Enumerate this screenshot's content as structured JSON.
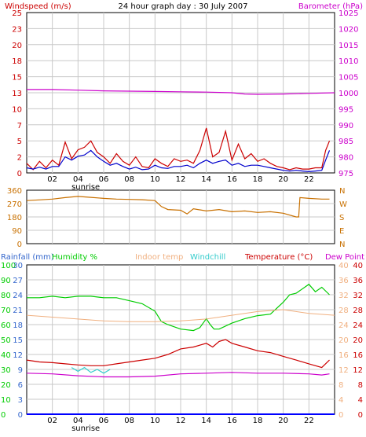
{
  "colors": {
    "frame": "#000000",
    "grid": "#c8c8c8",
    "windspeed": "#cc0000",
    "wind_avg": "#0000cc",
    "barometer": "#cc00cc",
    "direction": "#c87000",
    "rainfall": "#0000ff",
    "humidity": "#00cc00",
    "indoor_temp": "#f0b080",
    "windchill": "#33cccc",
    "temperature": "#cc0000",
    "dew_point": "#cc00cc",
    "temp_axis": "#cc0000",
    "rain_axis": "#3366cc"
  },
  "chart_data": [
    {
      "type": "line",
      "title": "24 hour graph day : 30 July 2007",
      "left_label": "Windspeed (m/s)",
      "right_label": "Barometer (hPa)",
      "xlim": [
        0,
        24
      ],
      "x_ticks": [
        "02",
        "04",
        "06",
        "08",
        "10",
        "12",
        "14",
        "16",
        "18",
        "20",
        "22"
      ],
      "x_tick_hours": [
        2,
        4,
        6,
        8,
        10,
        12,
        14,
        16,
        18,
        20,
        22
      ],
      "sunrise_label": "sunrise",
      "sunrise_hour": 4.6,
      "left_ylim": [
        0,
        25
      ],
      "left_ticks": [
        "0",
        "2",
        "5",
        "7",
        "10",
        "13",
        "15",
        "18",
        "20",
        "23",
        "25"
      ],
      "right_ylim": [
        975,
        1025
      ],
      "right_ticks": [
        "975",
        "980",
        "985",
        "990",
        "995",
        "1000",
        "1005",
        "1010",
        "1015",
        "1020",
        "1025"
      ],
      "series": [
        {
          "key": "gust",
          "axis": "left",
          "x": [
            0,
            0.5,
            1,
            1.5,
            2,
            2.5,
            3,
            3.5,
            4,
            4.5,
            5,
            5.5,
            6,
            6.5,
            7,
            7.5,
            8,
            8.5,
            9,
            9.5,
            10,
            10.5,
            11,
            11.5,
            12,
            12.5,
            13,
            13.5,
            14,
            14.5,
            15,
            15.5,
            16,
            16.5,
            17,
            17.5,
            18,
            18.5,
            19,
            19.5,
            20,
            20.5,
            21,
            21.5,
            22,
            22.5,
            23,
            23.3,
            23.6
          ],
          "y": [
            1.5,
            0.5,
            1.8,
            0.8,
            2.0,
            1.2,
            4.8,
            2.2,
            3.6,
            4.0,
            5.0,
            3.2,
            2.5,
            1.5,
            3.0,
            1.8,
            1.2,
            2.5,
            1.0,
            0.8,
            2.2,
            1.5,
            1.0,
            2.2,
            1.8,
            2.0,
            1.5,
            3.5,
            7.0,
            2.5,
            3.2,
            6.5,
            2.0,
            4.5,
            2.2,
            3.0,
            1.8,
            2.2,
            1.5,
            1.0,
            0.8,
            0.5,
            0.8,
            0.6,
            0.6,
            0.8,
            0.8,
            3.5,
            5.0
          ]
        },
        {
          "key": "average",
          "axis": "left",
          "x": [
            0,
            0.5,
            1,
            1.5,
            2,
            2.5,
            3,
            3.5,
            4,
            4.5,
            5,
            5.5,
            6,
            6.5,
            7,
            7.5,
            8,
            8.5,
            9,
            9.5,
            10,
            10.5,
            11,
            11.5,
            12,
            12.5,
            13,
            13.5,
            14,
            14.5,
            15,
            15.5,
            16,
            16.5,
            17,
            17.5,
            18,
            18.5,
            19,
            19.5,
            20,
            20.5,
            21,
            21.5,
            22,
            22.5,
            23,
            23.3,
            23.6
          ],
          "y": [
            0.8,
            0.6,
            0.9,
            0.6,
            1.0,
            1.0,
            2.5,
            2.0,
            2.6,
            2.8,
            3.5,
            2.5,
            1.8,
            1.2,
            1.5,
            1.0,
            0.6,
            0.9,
            0.5,
            0.6,
            1.2,
            0.8,
            0.7,
            1.0,
            1.0,
            1.2,
            0.8,
            1.5,
            2.0,
            1.5,
            1.8,
            2.0,
            1.2,
            1.5,
            1.0,
            1.2,
            1.2,
            1.0,
            0.8,
            0.6,
            0.4,
            0.3,
            0.4,
            0.3,
            0.2,
            0.3,
            0.4,
            2.0,
            3.5
          ]
        },
        {
          "key": "barometer",
          "axis": "right",
          "x": [
            0,
            2,
            4,
            6,
            8,
            10,
            12,
            14,
            16,
            17,
            18,
            20,
            22,
            24
          ],
          "y": [
            1001.0,
            1001.0,
            1000.8,
            1000.6,
            1000.5,
            1000.4,
            1000.3,
            1000.2,
            1000.0,
            999.6,
            999.5,
            999.6,
            999.8,
            1000.0
          ]
        }
      ]
    },
    {
      "type": "line",
      "xlim": [
        0,
        24
      ],
      "x_tick_hours": [
        2,
        4,
        6,
        8,
        10,
        12,
        14,
        16,
        18,
        20,
        22
      ],
      "left_ylim": [
        0,
        360
      ],
      "left_ticks": [
        "0",
        "90",
        "180",
        "270",
        "360"
      ],
      "right_ticks": [
        "N",
        "E",
        "S",
        "W",
        "N"
      ],
      "series": [
        {
          "key": "direction",
          "axis": "left",
          "x": [
            0,
            1,
            2,
            3,
            4,
            5,
            6,
            7,
            8,
            9,
            10,
            10.5,
            11,
            12,
            12.5,
            13,
            14,
            15,
            16,
            17,
            18,
            19,
            20,
            21,
            21.2,
            21.3,
            22,
            23,
            23.6
          ],
          "y": [
            290,
            295,
            300,
            310,
            318,
            312,
            305,
            300,
            298,
            296,
            290,
            250,
            230,
            225,
            200,
            235,
            220,
            230,
            215,
            220,
            210,
            215,
            205,
            180,
            180,
            310,
            305,
            300,
            300
          ]
        }
      ]
    },
    {
      "type": "line",
      "left_labels": [
        "Rainfall (mm)",
        "Humidity %"
      ],
      "center_labels": [
        "Indoor temp",
        "Windchill"
      ],
      "right_labels": [
        "Temperature (°C)",
        "Dew Point"
      ],
      "xlim": [
        0,
        24
      ],
      "x_ticks": [
        "02",
        "04",
        "06",
        "08",
        "10",
        "12",
        "14",
        "16",
        "18",
        "20",
        "22"
      ],
      "x_tick_hours": [
        2,
        4,
        6,
        8,
        10,
        12,
        14,
        16,
        18,
        20,
        22
      ],
      "sunrise_label": "sunrise",
      "sunrise_hour": 4.6,
      "rain_ylim": [
        0,
        30
      ],
      "rain_ticks": [
        "0",
        "3",
        "6",
        "9",
        "12",
        "15",
        "18",
        "21",
        "24",
        "27",
        "30"
      ],
      "humidity_ylim": [
        0,
        100
      ],
      "humidity_ticks": [
        "0",
        "10",
        "20",
        "30",
        "40",
        "50",
        "60",
        "70",
        "80",
        "90",
        "100"
      ],
      "temp_ylim": [
        0,
        40
      ],
      "temp_ticks_left": [
        "0",
        "4",
        "8",
        "12",
        "16",
        "20",
        "24",
        "28",
        "32",
        "36",
        "40"
      ],
      "temp_ticks_right": [
        "0",
        "4",
        "8",
        "12",
        "16",
        "20",
        "24",
        "28",
        "32",
        "36",
        "40"
      ],
      "series": [
        {
          "key": "rainfall",
          "axis": "rain",
          "x": [
            0,
            24
          ],
          "y": [
            0,
            0
          ]
        },
        {
          "key": "humidity",
          "axis": "humidity",
          "x": [
            0,
            1,
            2,
            3,
            4,
            5,
            6,
            7,
            8,
            9,
            10,
            10.5,
            11,
            12,
            13,
            13.5,
            14,
            14.3,
            14.6,
            15,
            16,
            17,
            18,
            19,
            20,
            20.5,
            21,
            22,
            22.5,
            23,
            23.6
          ],
          "y": [
            78,
            78,
            79,
            78,
            79,
            79,
            78,
            78,
            76,
            74,
            69,
            62,
            60,
            57,
            56,
            58,
            64,
            60,
            57,
            57,
            61,
            64,
            66,
            67,
            75,
            80,
            81,
            87,
            82,
            85,
            80
          ]
        },
        {
          "key": "indoor_temp",
          "axis": "temp",
          "x": [
            0,
            2,
            4,
            6,
            8,
            10,
            12,
            14,
            16,
            18,
            20,
            22,
            24
          ],
          "y": [
            26.5,
            26.0,
            25.5,
            25.0,
            24.8,
            24.8,
            25.0,
            25.5,
            26.5,
            27.5,
            28.0,
            27.0,
            26.5
          ]
        },
        {
          "key": "windchill",
          "axis": "temp",
          "x": [
            3.5,
            4,
            4.5,
            5,
            5.5,
            6,
            6.5
          ],
          "y": [
            12.5,
            11.5,
            12.5,
            11.2,
            12.0,
            11.0,
            12.0
          ]
        },
        {
          "key": "temperature",
          "axis": "temp",
          "x": [
            0,
            1,
            2,
            3,
            4,
            5,
            6,
            7,
            8,
            9,
            10,
            11,
            12,
            13,
            14,
            14.5,
            15,
            15.5,
            16,
            17,
            18,
            19,
            20,
            21,
            22,
            23,
            23.6
          ],
          "y": [
            14.5,
            14.0,
            13.8,
            13.5,
            13.2,
            13.0,
            13.0,
            13.5,
            14.0,
            14.5,
            15.0,
            16.0,
            17.5,
            18.0,
            19.0,
            18.0,
            19.5,
            20.0,
            19.0,
            18.0,
            17.0,
            16.5,
            15.5,
            14.5,
            13.5,
            12.5,
            14.5
          ]
        },
        {
          "key": "dew_point",
          "axis": "temp",
          "x": [
            0,
            2,
            4,
            6,
            8,
            10,
            12,
            14,
            16,
            18,
            20,
            22,
            23,
            23.6
          ],
          "y": [
            11.0,
            10.8,
            10.3,
            10.0,
            10.0,
            10.2,
            10.8,
            11.0,
            11.2,
            11.0,
            11.0,
            10.8,
            10.5,
            10.8
          ]
        }
      ]
    }
  ]
}
